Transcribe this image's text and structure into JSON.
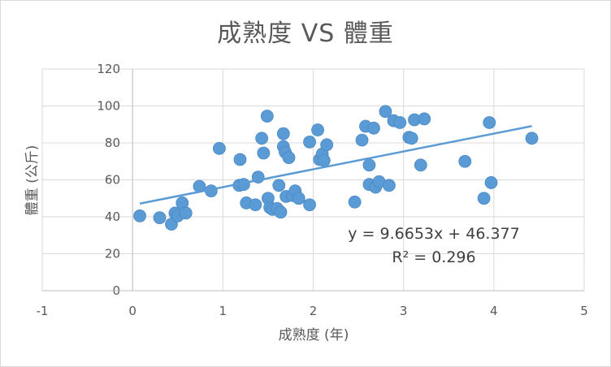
{
  "chart_data": {
    "type": "scatter",
    "title": "成熟度 VS 體重",
    "xlabel": "成熟度 (年)",
    "ylabel": "體重 (公斤)",
    "xlim": [
      -1,
      5
    ],
    "ylim": [
      0,
      120
    ],
    "x_ticks": [
      "-1",
      "0",
      "1",
      "2",
      "3",
      "4",
      "5"
    ],
    "y_ticks": [
      "0",
      "20",
      "40",
      "60",
      "80",
      "100",
      "120"
    ],
    "grid": true,
    "legend": "none",
    "marker_color": "#5b9bd5",
    "trendline": {
      "type": "linear",
      "slope": 9.6653,
      "intercept": 46.377,
      "x_range": [
        0.08,
        4.42
      ],
      "color": "#5b9bd5",
      "equation_label": "y = 9.6653x + 46.377",
      "r2_label": "R² = 0.296"
    },
    "series": [
      {
        "points": [
          [
            0.08,
            40.5
          ],
          [
            0.3,
            39.5
          ],
          [
            0.43,
            36
          ],
          [
            0.47,
            42
          ],
          [
            0.5,
            40.5
          ],
          [
            0.55,
            47.5
          ],
          [
            0.59,
            42
          ],
          [
            0.74,
            56.5
          ],
          [
            0.87,
            54
          ],
          [
            0.96,
            77
          ],
          [
            1.18,
            57
          ],
          [
            1.19,
            71
          ],
          [
            1.23,
            57.5
          ],
          [
            1.26,
            47.5
          ],
          [
            1.36,
            46.5
          ],
          [
            1.39,
            61.5
          ],
          [
            1.43,
            82.5
          ],
          [
            1.45,
            74.5
          ],
          [
            1.49,
            94.5
          ],
          [
            1.5,
            50
          ],
          [
            1.52,
            45
          ],
          [
            1.55,
            44
          ],
          [
            1.6,
            44.5
          ],
          [
            1.62,
            57
          ],
          [
            1.64,
            42.5
          ],
          [
            1.67,
            85
          ],
          [
            1.67,
            78
          ],
          [
            1.69,
            75
          ],
          [
            1.7,
            51
          ],
          [
            1.73,
            72
          ],
          [
            1.77,
            51.5
          ],
          [
            1.8,
            54
          ],
          [
            1.84,
            50
          ],
          [
            1.96,
            80.5
          ],
          [
            1.96,
            46.5
          ],
          [
            2.05,
            87
          ],
          [
            2.07,
            71
          ],
          [
            2.1,
            74
          ],
          [
            2.12,
            70.5
          ],
          [
            2.15,
            79
          ],
          [
            2.46,
            48
          ],
          [
            2.54,
            81.5
          ],
          [
            2.58,
            89
          ],
          [
            2.62,
            68
          ],
          [
            2.62,
            57.5
          ],
          [
            2.67,
            88
          ],
          [
            2.69,
            56
          ],
          [
            2.73,
            59
          ],
          [
            2.8,
            97
          ],
          [
            2.84,
            57
          ],
          [
            2.89,
            92
          ],
          [
            2.96,
            91
          ],
          [
            3.06,
            83
          ],
          [
            3.09,
            82.5
          ],
          [
            3.12,
            92.5
          ],
          [
            3.19,
            68
          ],
          [
            3.23,
            93
          ],
          [
            3.68,
            70
          ],
          [
            3.89,
            50
          ],
          [
            3.95,
            91
          ],
          [
            3.97,
            58.5
          ],
          [
            4.42,
            82.5
          ]
        ]
      }
    ]
  }
}
